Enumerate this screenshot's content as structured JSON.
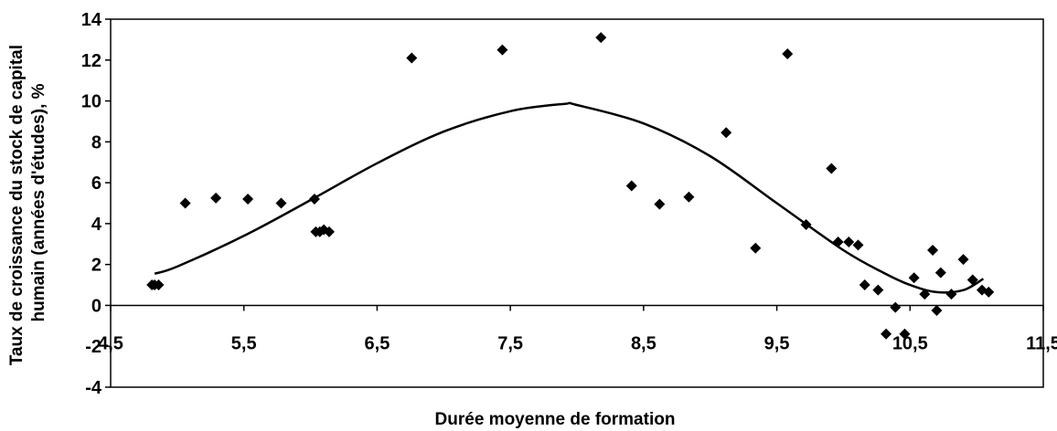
{
  "chart_data": {
    "type": "scatter",
    "xlabel": "Durée moyenne de formation",
    "ylabel_lines": [
      "Taux de croissance du stock de capital",
      "humain (années d'études), %"
    ],
    "xlim": [
      4.5,
      11.5
    ],
    "ylim": [
      -4,
      14
    ],
    "x_ticks": [
      4.5,
      5.5,
      6.5,
      7.5,
      8.5,
      9.5,
      10.5,
      11.5
    ],
    "x_tick_labels": [
      "4,5",
      "5,5",
      "6,5",
      "7,5",
      "8,5",
      "9,5",
      "10,5",
      "11,5"
    ],
    "y_ticks": [
      -4,
      -2,
      0,
      2,
      4,
      6,
      8,
      10,
      12,
      14
    ],
    "y_tick_labels": [
      "-4",
      "-2",
      "0",
      "2",
      "4",
      "6",
      "8",
      "10",
      "12",
      "14"
    ],
    "grid": false,
    "legend": "none",
    "marker_color": "#000000",
    "points": [
      {
        "x": 4.81,
        "y": 1.0
      },
      {
        "x": 4.83,
        "y": 1.0
      },
      {
        "x": 4.86,
        "y": 1.0
      },
      {
        "x": 5.06,
        "y": 5.0
      },
      {
        "x": 5.29,
        "y": 5.25
      },
      {
        "x": 5.53,
        "y": 5.2
      },
      {
        "x": 5.78,
        "y": 5.0
      },
      {
        "x": 6.03,
        "y": 5.2
      },
      {
        "x": 6.04,
        "y": 3.6
      },
      {
        "x": 6.07,
        "y": 3.6
      },
      {
        "x": 6.1,
        "y": 3.7
      },
      {
        "x": 6.14,
        "y": 3.6
      },
      {
        "x": 6.76,
        "y": 12.1
      },
      {
        "x": 7.44,
        "y": 12.5
      },
      {
        "x": 8.18,
        "y": 13.1
      },
      {
        "x": 8.41,
        "y": 5.85
      },
      {
        "x": 8.62,
        "y": 4.95
      },
      {
        "x": 8.84,
        "y": 5.3
      },
      {
        "x": 9.12,
        "y": 8.45
      },
      {
        "x": 9.34,
        "y": 2.8
      },
      {
        "x": 9.58,
        "y": 12.3
      },
      {
        "x": 9.72,
        "y": 3.95
      },
      {
        "x": 9.91,
        "y": 6.7
      },
      {
        "x": 9.96,
        "y": 3.1
      },
      {
        "x": 10.04,
        "y": 3.1
      },
      {
        "x": 10.11,
        "y": 2.95
      },
      {
        "x": 10.16,
        "y": 1.0
      },
      {
        "x": 10.26,
        "y": 0.75
      },
      {
        "x": 10.32,
        "y": -1.4
      },
      {
        "x": 10.39,
        "y": -0.1
      },
      {
        "x": 10.46,
        "y": -1.4
      },
      {
        "x": 10.53,
        "y": 1.35
      },
      {
        "x": 10.61,
        "y": 0.55
      },
      {
        "x": 10.67,
        "y": 2.7
      },
      {
        "x": 10.7,
        "y": -0.25
      },
      {
        "x": 10.73,
        "y": 1.6
      },
      {
        "x": 10.81,
        "y": 0.55
      },
      {
        "x": 10.9,
        "y": 2.25
      },
      {
        "x": 10.97,
        "y": 1.25
      },
      {
        "x": 11.04,
        "y": 0.75
      },
      {
        "x": 11.09,
        "y": 0.65
      }
    ],
    "trendline": {
      "x": [
        4.83,
        5.0,
        5.5,
        6.0,
        6.5,
        7.0,
        7.5,
        7.9,
        8.0,
        8.5,
        9.0,
        9.5,
        10.0,
        10.3,
        10.5,
        10.7,
        10.9,
        11.05
      ],
      "y": [
        1.55,
        1.9,
        3.4,
        5.15,
        6.95,
        8.5,
        9.5,
        9.85,
        9.8,
        8.9,
        7.3,
        5.0,
        2.7,
        1.6,
        1.0,
        0.65,
        0.75,
        1.3
      ]
    }
  }
}
